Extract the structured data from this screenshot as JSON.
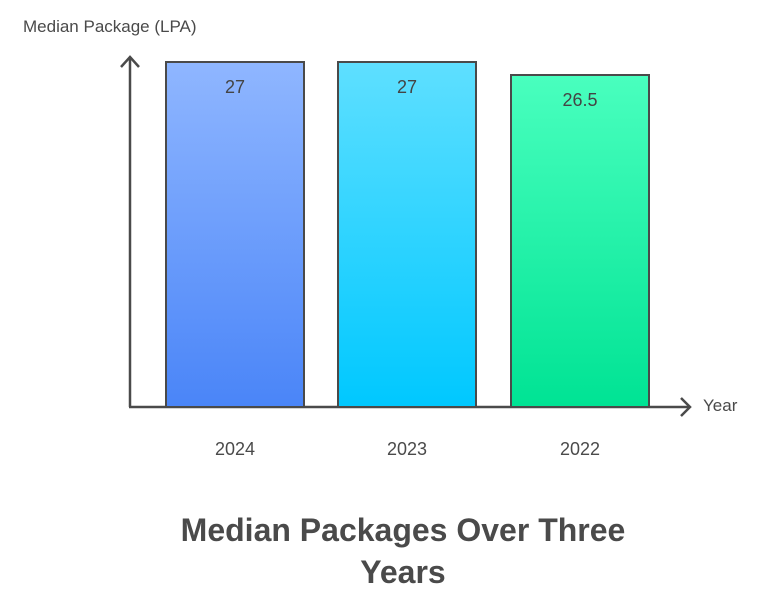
{
  "chart_data": {
    "type": "bar",
    "title": "Median Packages Over Three Years",
    "xlabel": "Year",
    "ylabel": "Median Package (LPA)",
    "categories": [
      "2024",
      "2023",
      "2022"
    ],
    "values": [
      27,
      27,
      26.5
    ],
    "value_labels": [
      "27",
      "27",
      "26.5"
    ],
    "ylim": [
      0,
      27
    ],
    "grid": false,
    "legend": null,
    "colors": [
      {
        "top": "#8FB6FF",
        "bottom": "#4A85F8"
      },
      {
        "top": "#5EDFFF",
        "bottom": "#00C8FF"
      },
      {
        "top": "#49FFBE",
        "bottom": "#00E394"
      }
    ]
  },
  "axis": {
    "y_label": "Median Package (LPA)",
    "x_label": "Year"
  },
  "title": {
    "line1": "Median Packages Over Three",
    "line2": "Years"
  }
}
